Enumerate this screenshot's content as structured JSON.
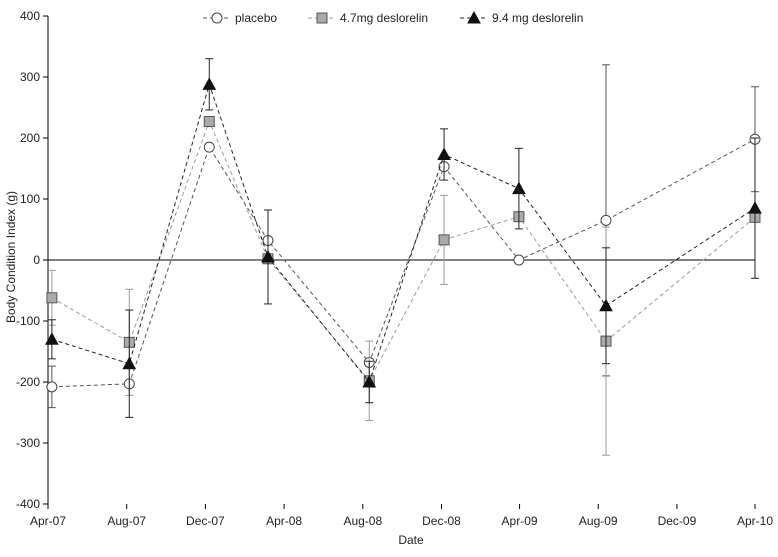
{
  "chart_data": {
    "type": "line",
    "title": "",
    "xlabel": "Date",
    "ylabel": "Body Condition Index  (g)",
    "ylim": [
      -400,
      400
    ],
    "yticks": [
      400,
      300,
      200,
      100,
      0,
      -100,
      -200,
      -300,
      -400
    ],
    "xlim": [
      "2007-04-01",
      "2010-04-01"
    ],
    "xticks": [
      {
        "date": "2007-04-01",
        "label": "Apr-07"
      },
      {
        "date": "2007-08-01",
        "label": "Aug-07"
      },
      {
        "date": "2007-12-01",
        "label": "Dec-07"
      },
      {
        "date": "2008-04-01",
        "label": "Apr-08"
      },
      {
        "date": "2008-08-01",
        "label": "Aug-08"
      },
      {
        "date": "2008-12-01",
        "label": "Dec-08"
      },
      {
        "date": "2009-04-01",
        "label": "Apr-09"
      },
      {
        "date": "2009-08-01",
        "label": "Aug-09"
      },
      {
        "date": "2009-12-01",
        "label": "Dec-09"
      },
      {
        "date": "2010-04-01",
        "label": "Apr-10"
      }
    ],
    "grid": false,
    "legend_position": "top",
    "series": [
      {
        "name": "placebo",
        "marker": "circle",
        "fill": "#ffffff",
        "stroke": "#444444",
        "line_color": "#555555",
        "x": [
          "2007-04-07",
          "2007-08-05",
          "2007-12-07",
          "2008-03-07",
          "2008-08-11",
          "2008-12-05",
          "2009-03-31",
          "2009-08-13",
          "2010-04-01"
        ],
        "values": [
          -208,
          -203,
          185,
          32,
          -168,
          153,
          0,
          65,
          198
        ],
        "err": [
          34,
          0,
          0,
          0,
          0,
          0,
          0,
          255,
          86
        ]
      },
      {
        "name": "4.7mg deslorelin",
        "marker": "square",
        "fill": "#aaaaaa",
        "stroke": "#555555",
        "line_color": "#9a9a9a",
        "x": [
          "2007-04-07",
          "2007-08-05",
          "2007-12-07",
          "2008-03-07",
          "2008-08-11",
          "2008-12-05",
          "2009-03-31",
          "2009-08-13",
          "2010-04-01"
        ],
        "values": [
          -62,
          -135,
          227,
          2,
          -198,
          33,
          71,
          -133,
          70
        ],
        "err": [
          45,
          87,
          0,
          0,
          65,
          73,
          0,
          187,
          0
        ]
      },
      {
        "name": "9.4 mg deslorelin",
        "marker": "triangle",
        "fill": "#111111",
        "stroke": "#111111",
        "line_color": "#222222",
        "x": [
          "2007-04-07",
          "2007-08-05",
          "2007-12-07",
          "2008-03-07",
          "2008-08-11",
          "2008-12-05",
          "2009-03-31",
          "2009-08-13",
          "2010-04-01"
        ],
        "values": [
          -130,
          -170,
          288,
          5,
          -200,
          173,
          117,
          -75,
          85
        ],
        "err": [
          32,
          88,
          42,
          77,
          34,
          42,
          66,
          95,
          115
        ]
      }
    ]
  }
}
